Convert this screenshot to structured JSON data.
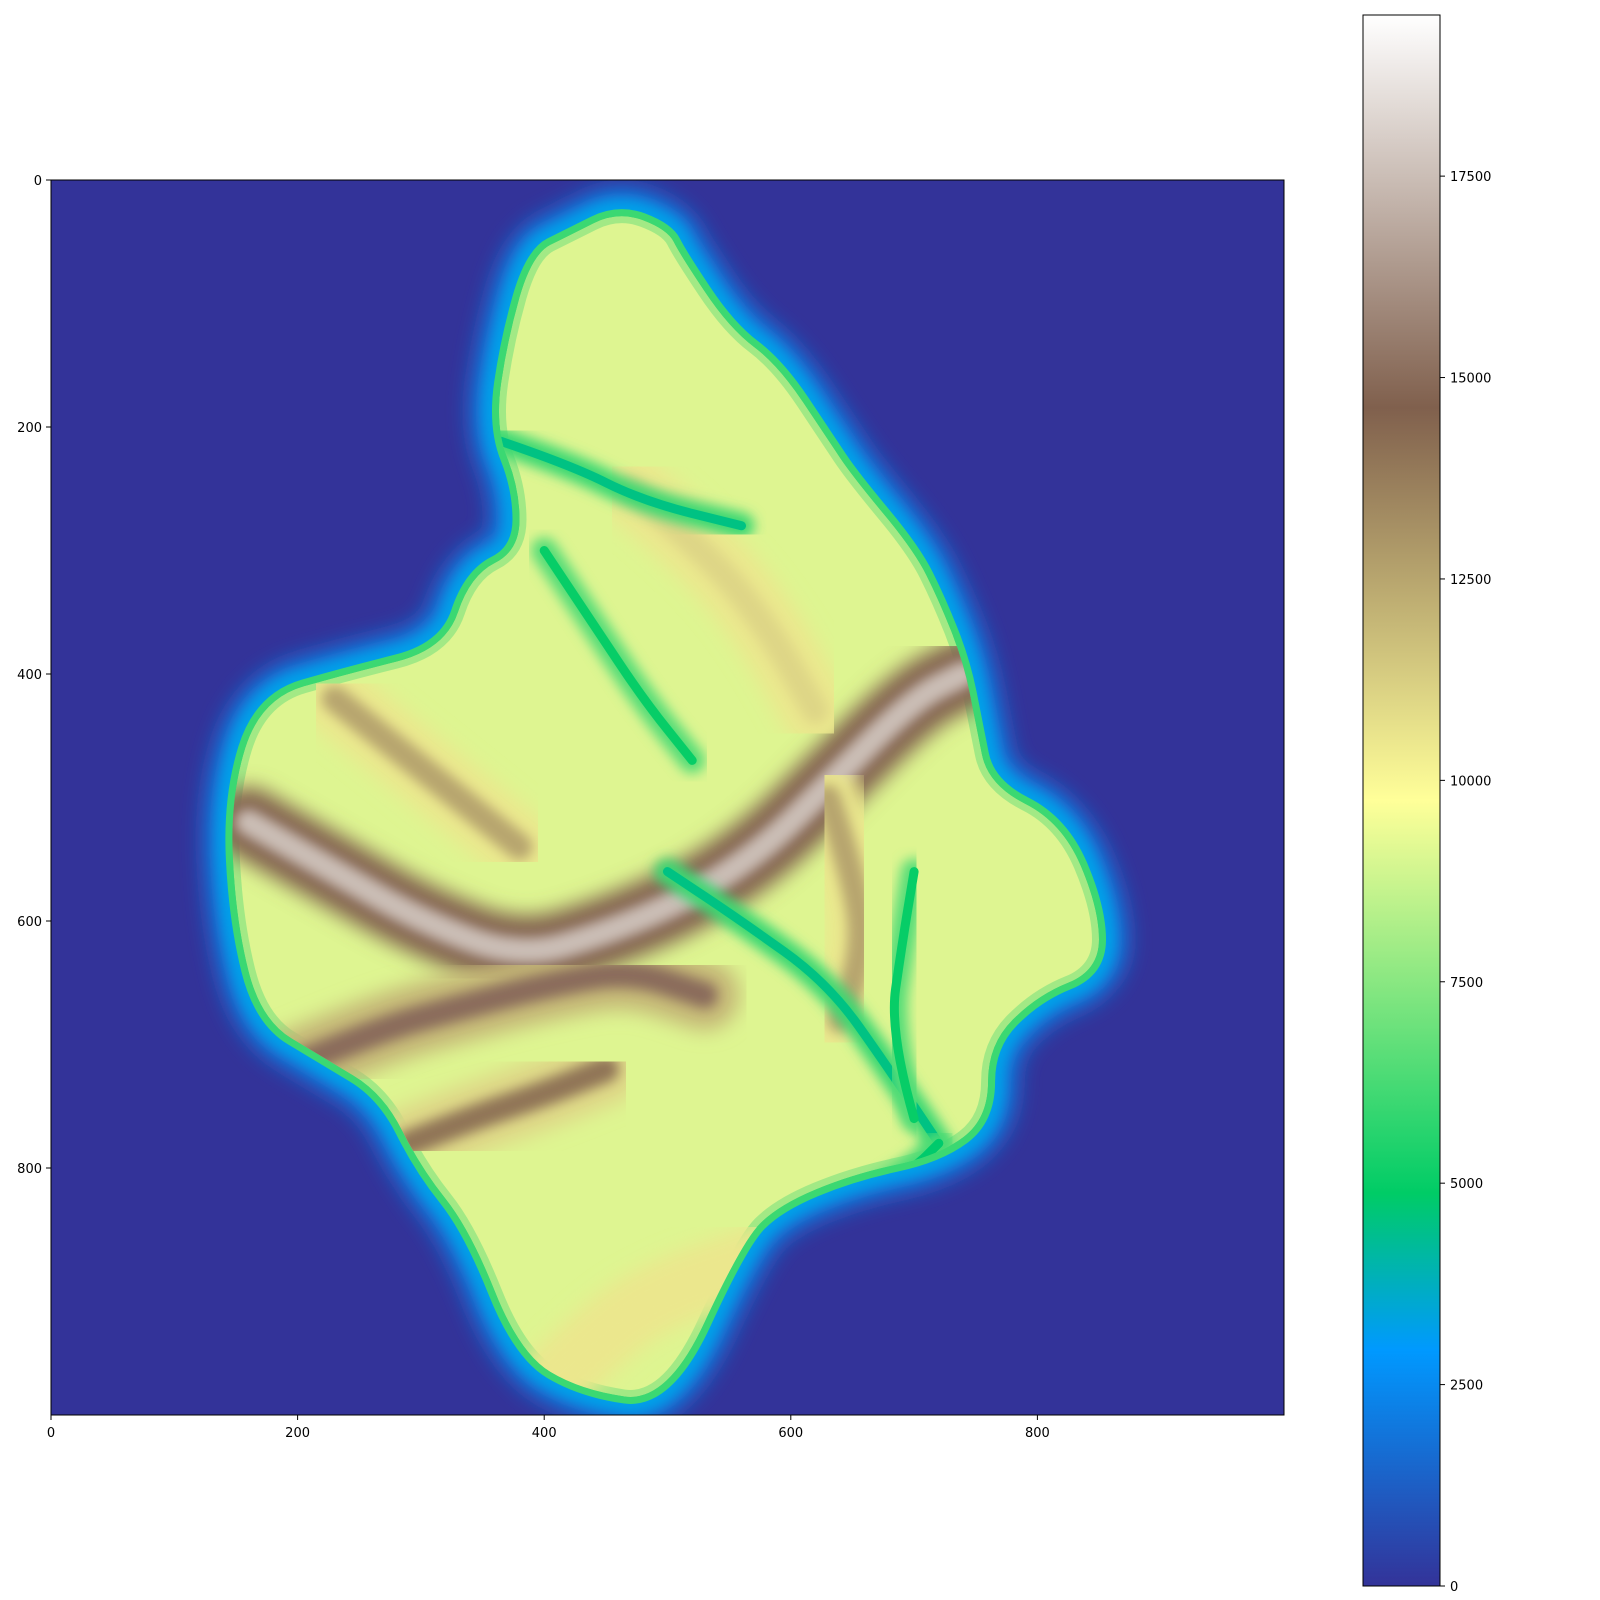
{
  "chart_data": {
    "type": "heatmap",
    "title": "",
    "xlabel": "",
    "ylabel": "",
    "image_extent": {
      "x": [
        0,
        1000
      ],
      "y": [
        0,
        1000
      ]
    },
    "x_ticks": [
      {
        "value": 0,
        "label": "0"
      },
      {
        "value": 200,
        "label": "200"
      },
      {
        "value": 400,
        "label": "400"
      },
      {
        "value": 600,
        "label": "600"
      },
      {
        "value": 800,
        "label": "800"
      }
    ],
    "y_ticks": [
      {
        "value": 0,
        "label": "0"
      },
      {
        "value": 200,
        "label": "200"
      },
      {
        "value": 400,
        "label": "400"
      },
      {
        "value": 600,
        "label": "600"
      },
      {
        "value": 800,
        "label": "800"
      }
    ],
    "y_axis_inverted": true,
    "grid": false,
    "colormap": "terrain",
    "colorbar": {
      "range": [
        0,
        19500
      ],
      "ticks": [
        {
          "value": 0,
          "label": "0"
        },
        {
          "value": 2500,
          "label": "2500"
        },
        {
          "value": 5000,
          "label": "5000"
        },
        {
          "value": 7500,
          "label": "7500"
        },
        {
          "value": 10000,
          "label": "10000"
        },
        {
          "value": 12500,
          "label": "12500"
        },
        {
          "value": 15000,
          "label": "15000"
        },
        {
          "value": 17500,
          "label": "17500"
        }
      ],
      "stops": [
        {
          "value": 0,
          "color": "#333399"
        },
        {
          "value": 2925,
          "color": "#0099ff"
        },
        {
          "value": 4875,
          "color": "#00cc66"
        },
        {
          "value": 9750,
          "color": "#ffff99"
        },
        {
          "value": 14625,
          "color": "#80604d"
        },
        {
          "value": 19500,
          "color": "#ffffff"
        }
      ]
    },
    "island_outline": [
      [
        390,
        60
      ],
      [
        420,
        45
      ],
      [
        460,
        25
      ],
      [
        500,
        40
      ],
      [
        510,
        60
      ],
      [
        550,
        120
      ],
      [
        590,
        150
      ],
      [
        630,
        210
      ],
      [
        650,
        240
      ],
      [
        700,
        300
      ],
      [
        720,
        340
      ],
      [
        740,
        390
      ],
      [
        750,
        440
      ],
      [
        760,
        490
      ],
      [
        820,
        520
      ],
      [
        850,
        590
      ],
      [
        850,
        640
      ],
      [
        800,
        660
      ],
      [
        760,
        700
      ],
      [
        760,
        760
      ],
      [
        720,
        790
      ],
      [
        650,
        805
      ],
      [
        590,
        830
      ],
      [
        560,
        860
      ],
      [
        500,
        990
      ],
      [
        430,
        980
      ],
      [
        380,
        950
      ],
      [
        340,
        850
      ],
      [
        300,
        800
      ],
      [
        270,
        740
      ],
      [
        220,
        710
      ],
      [
        170,
        680
      ],
      [
        150,
        600
      ],
      [
        145,
        500
      ],
      [
        170,
        420
      ],
      [
        240,
        400
      ],
      [
        320,
        380
      ],
      [
        340,
        320
      ],
      [
        380,
        300
      ],
      [
        380,
        250
      ],
      [
        360,
        200
      ],
      [
        370,
        130
      ]
    ],
    "ridges": [
      {
        "level": 17500,
        "points": [
          [
            160,
            520
          ],
          [
            230,
            560
          ],
          [
            300,
            600
          ],
          [
            380,
            630
          ],
          [
            450,
            610
          ],
          [
            520,
            580
          ],
          [
            580,
            540
          ],
          [
            630,
            490
          ],
          [
            700,
            420
          ],
          [
            740,
            400
          ]
        ]
      },
      {
        "level": 15000,
        "points": [
          [
            190,
            720
          ],
          [
            260,
            690
          ],
          [
            330,
            670
          ],
          [
            410,
            650
          ],
          [
            470,
            640
          ],
          [
            530,
            660
          ]
        ]
      },
      {
        "level": 14000,
        "points": [
          [
            290,
            780
          ],
          [
            340,
            760
          ],
          [
            400,
            740
          ],
          [
            450,
            720
          ]
        ]
      },
      {
        "level": 12500,
        "points": [
          [
            630,
            500
          ],
          [
            650,
            560
          ],
          [
            660,
            620
          ],
          [
            640,
            680
          ]
        ]
      },
      {
        "level": 12500,
        "points": [
          [
            230,
            420
          ],
          [
            280,
            460
          ],
          [
            330,
            500
          ],
          [
            380,
            540
          ]
        ]
      },
      {
        "level": 11000,
        "points": [
          [
            470,
            250
          ],
          [
            530,
            300
          ],
          [
            580,
            360
          ],
          [
            620,
            430
          ]
        ]
      },
      {
        "level": 10500,
        "points": [
          [
            400,
            980
          ],
          [
            450,
            930
          ],
          [
            500,
            900
          ],
          [
            560,
            880
          ],
          [
            610,
            860
          ]
        ]
      }
    ],
    "rivers": [
      {
        "level": 4500,
        "points": [
          [
            360,
            210
          ],
          [
            420,
            230
          ],
          [
            480,
            260
          ],
          [
            560,
            280
          ]
        ]
      },
      {
        "level": 4500,
        "points": [
          [
            720,
            780
          ],
          [
            680,
            720
          ],
          [
            630,
            650
          ],
          [
            560,
            600
          ],
          [
            500,
            560
          ]
        ]
      },
      {
        "level": 4800,
        "points": [
          [
            610,
            860
          ],
          [
            650,
            830
          ],
          [
            700,
            800
          ],
          [
            720,
            780
          ]
        ]
      },
      {
        "level": 5000,
        "points": [
          [
            400,
            300
          ],
          [
            440,
            360
          ],
          [
            480,
            420
          ],
          [
            520,
            470
          ]
        ]
      },
      {
        "level": 5000,
        "points": [
          [
            700,
            760
          ],
          [
            680,
            690
          ],
          [
            690,
            620
          ],
          [
            700,
            560
          ]
        ]
      }
    ]
  }
}
